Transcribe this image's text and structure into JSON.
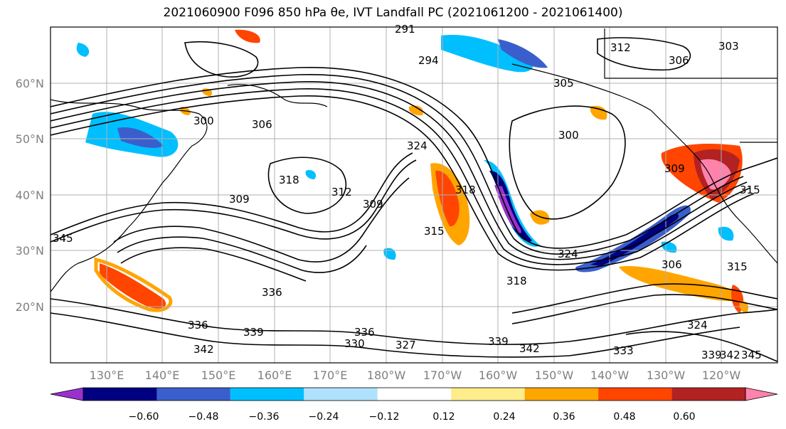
{
  "title": "2021060900 F096 850 hPa θe, IVT Landfall PC (2021061200 - 2021061400)",
  "map": {
    "lon_ticks": [
      "130°E",
      "140°E",
      "150°E",
      "160°E",
      "170°E",
      "180°W",
      "170°W",
      "160°W",
      "150°W",
      "140°W",
      "130°W",
      "120°W"
    ],
    "lat_ticks": [
      "60°N",
      "50°N",
      "40°N",
      "30°N",
      "20°N"
    ],
    "contour_labels": [
      "291",
      "294",
      "312",
      "306",
      "303",
      "305",
      "300",
      "306",
      "300",
      "324",
      "318",
      "312",
      "309",
      "309",
      "315",
      "318",
      "324",
      "306",
      "315",
      "318",
      "336",
      "339",
      "342",
      "336",
      "330",
      "327",
      "336",
      "339",
      "342",
      "333",
      "324",
      "339",
      "342",
      "345",
      "309",
      "345",
      "315"
    ]
  },
  "colorbar": {
    "ticks": [
      "−0.60",
      "−0.48",
      "−0.36",
      "−0.24",
      "−0.12",
      "0.12",
      "0.24",
      "0.36",
      "0.48",
      "0.60"
    ],
    "colors": [
      "#9932cc",
      "#000080",
      "#3a5fcd",
      "#00bfff",
      "#b0e2ff",
      "#ffffff",
      "#ffec8b",
      "#ffa500",
      "#ff4500",
      "#b22222",
      "#ff82ab"
    ]
  }
}
